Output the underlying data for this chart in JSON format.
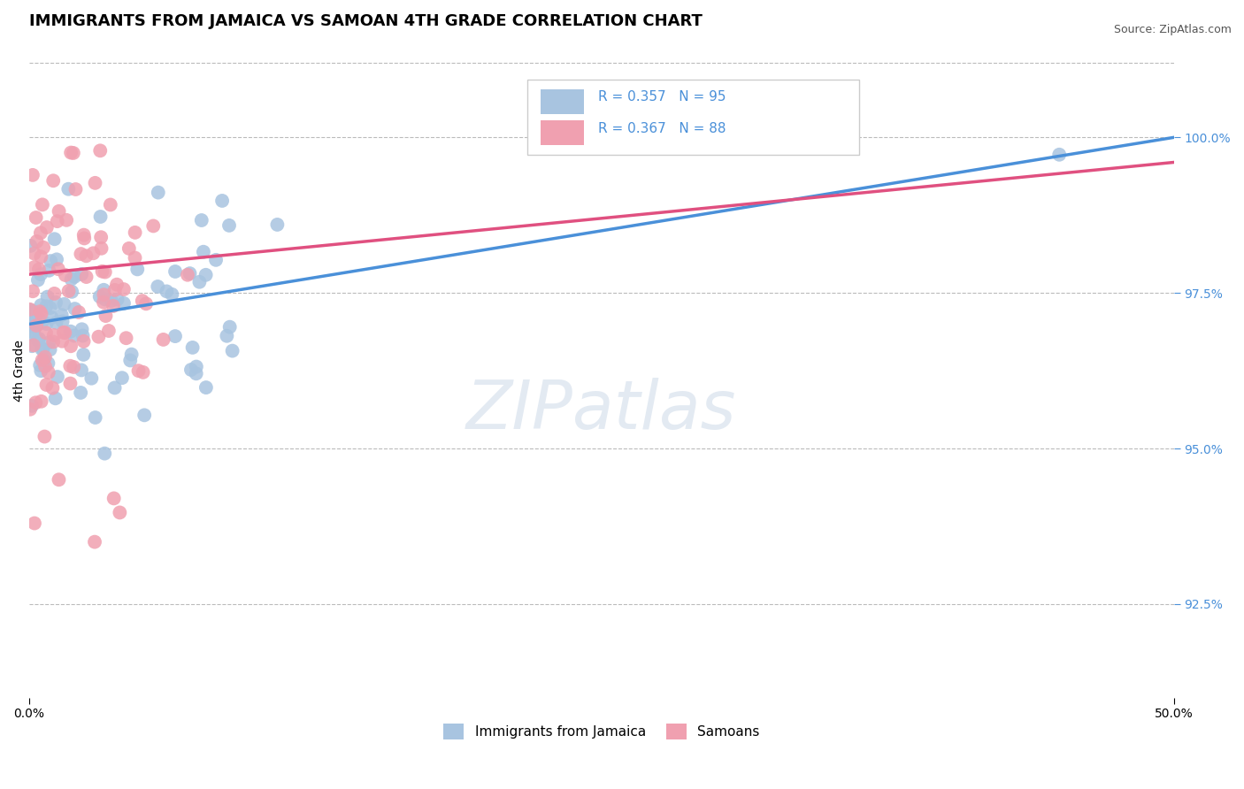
{
  "title": "IMMIGRANTS FROM JAMAICA VS SAMOAN 4TH GRADE CORRELATION CHART",
  "source_text": "Source: ZipAtlas.com",
  "ylabel": "4th Grade",
  "ytick_values": [
    92.5,
    95.0,
    97.5,
    100.0
  ],
  "xmin": 0.0,
  "xmax": 50.0,
  "ymin": 91.0,
  "ymax": 101.5,
  "legend_r_jamaica": "R = 0.357",
  "legend_n_jamaica": "N = 95",
  "legend_r_samoan": "R = 0.367",
  "legend_n_samoan": "N = 88",
  "legend_label_jamaica": "Immigrants from Jamaica",
  "legend_label_samoan": "Samoans",
  "color_jamaica": "#a8c4e0",
  "color_samoan": "#f0a0b0",
  "color_trendline_jamaica": "#4a90d9",
  "color_trendline_samoan": "#e05080",
  "title_fontsize": 13,
  "axis_label_fontsize": 10,
  "tick_fontsize": 10,
  "n_jamaica": 95,
  "n_samoan": 88
}
